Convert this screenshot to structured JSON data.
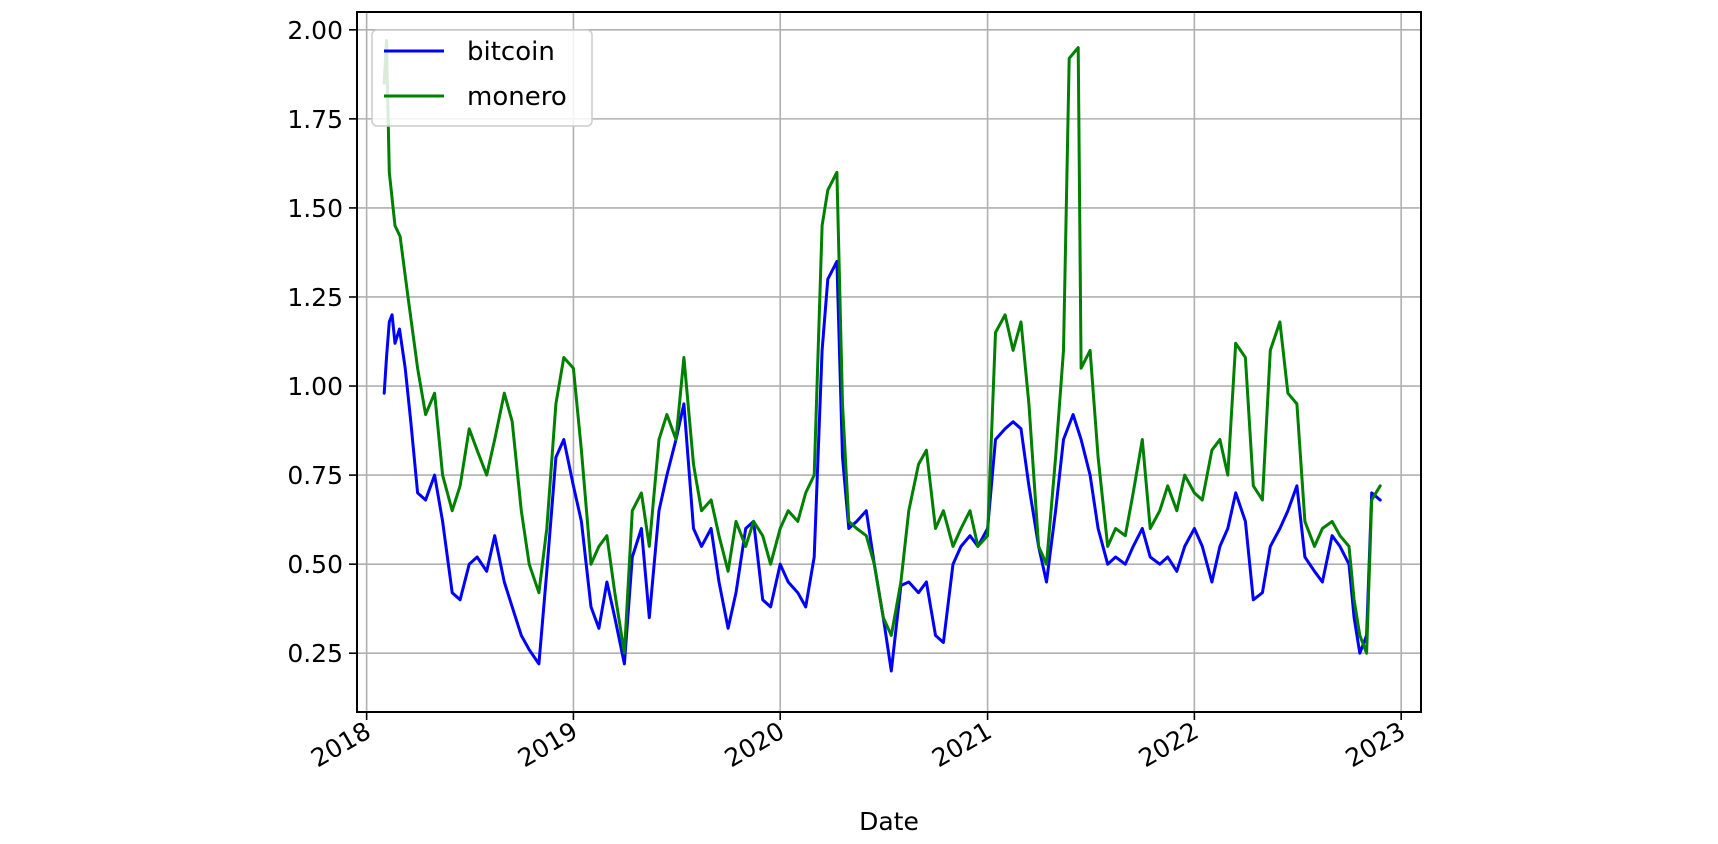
{
  "chart_data": {
    "type": "line",
    "title": "",
    "xlabel": "Date",
    "ylabel": "",
    "x_tick_labels": [
      "2018",
      "2019",
      "2020",
      "2021",
      "2022",
      "2023"
    ],
    "y_tick_labels": [
      "0.25",
      "0.50",
      "0.75",
      "1.00",
      "1.25",
      "1.50",
      "1.75",
      "2.00"
    ],
    "xlim": [
      "2017-12-15",
      "2023-02-05"
    ],
    "ylim": [
      0.085,
      2.05
    ],
    "grid": true,
    "legend_position": "upper-left",
    "series": [
      {
        "name": "bitcoin",
        "color": "#0000ff",
        "points": [
          [
            "2018-02-01",
            0.98
          ],
          [
            "2018-02-05",
            1.08
          ],
          [
            "2018-02-10",
            1.18
          ],
          [
            "2018-02-15",
            1.2
          ],
          [
            "2018-02-20",
            1.12
          ],
          [
            "2018-02-28",
            1.16
          ],
          [
            "2018-03-10",
            1.05
          ],
          [
            "2018-03-20",
            0.9
          ],
          [
            "2018-04-01",
            0.7
          ],
          [
            "2018-04-15",
            0.68
          ],
          [
            "2018-05-01",
            0.75
          ],
          [
            "2018-05-15",
            0.62
          ],
          [
            "2018-06-01",
            0.42
          ],
          [
            "2018-06-15",
            0.4
          ],
          [
            "2018-07-01",
            0.5
          ],
          [
            "2018-07-15",
            0.52
          ],
          [
            "2018-08-01",
            0.48
          ],
          [
            "2018-08-15",
            0.58
          ],
          [
            "2018-09-01",
            0.45
          ],
          [
            "2018-09-15",
            0.38
          ],
          [
            "2018-10-01",
            0.3
          ],
          [
            "2018-10-15",
            0.26
          ],
          [
            "2018-11-01",
            0.22
          ],
          [
            "2018-11-15",
            0.48
          ],
          [
            "2018-12-01",
            0.8
          ],
          [
            "2018-12-15",
            0.85
          ],
          [
            "2019-01-01",
            0.72
          ],
          [
            "2019-01-15",
            0.62
          ],
          [
            "2019-02-01",
            0.38
          ],
          [
            "2019-02-15",
            0.32
          ],
          [
            "2019-03-01",
            0.45
          ],
          [
            "2019-03-15",
            0.35
          ],
          [
            "2019-04-01",
            0.22
          ],
          [
            "2019-04-15",
            0.52
          ],
          [
            "2019-05-01",
            0.6
          ],
          [
            "2019-05-15",
            0.35
          ],
          [
            "2019-06-01",
            0.65
          ],
          [
            "2019-06-15",
            0.75
          ],
          [
            "2019-07-01",
            0.85
          ],
          [
            "2019-07-15",
            0.95
          ],
          [
            "2019-08-01",
            0.6
          ],
          [
            "2019-08-15",
            0.55
          ],
          [
            "2019-09-01",
            0.6
          ],
          [
            "2019-09-15",
            0.45
          ],
          [
            "2019-10-01",
            0.32
          ],
          [
            "2019-10-15",
            0.42
          ],
          [
            "2019-11-01",
            0.6
          ],
          [
            "2019-11-15",
            0.62
          ],
          [
            "2019-12-01",
            0.4
          ],
          [
            "2019-12-15",
            0.38
          ],
          [
            "2020-01-01",
            0.5
          ],
          [
            "2020-01-15",
            0.45
          ],
          [
            "2020-02-01",
            0.42
          ],
          [
            "2020-02-15",
            0.38
          ],
          [
            "2020-03-01",
            0.52
          ],
          [
            "2020-03-15",
            1.1
          ],
          [
            "2020-03-25",
            1.3
          ],
          [
            "2020-04-10",
            1.35
          ],
          [
            "2020-04-20",
            0.8
          ],
          [
            "2020-05-01",
            0.6
          ],
          [
            "2020-05-15",
            0.62
          ],
          [
            "2020-06-01",
            0.65
          ],
          [
            "2020-06-15",
            0.5
          ],
          [
            "2020-07-01",
            0.35
          ],
          [
            "2020-07-15",
            0.2
          ],
          [
            "2020-08-01",
            0.44
          ],
          [
            "2020-08-15",
            0.45
          ],
          [
            "2020-09-01",
            0.42
          ],
          [
            "2020-09-15",
            0.45
          ],
          [
            "2020-10-01",
            0.3
          ],
          [
            "2020-10-15",
            0.28
          ],
          [
            "2020-11-01",
            0.5
          ],
          [
            "2020-11-15",
            0.55
          ],
          [
            "2020-12-01",
            0.58
          ],
          [
            "2020-12-15",
            0.55
          ],
          [
            "2021-01-01",
            0.6
          ],
          [
            "2021-01-15",
            0.85
          ],
          [
            "2021-02-01",
            0.88
          ],
          [
            "2021-02-15",
            0.9
          ],
          [
            "2021-03-01",
            0.88
          ],
          [
            "2021-03-15",
            0.72
          ],
          [
            "2021-04-01",
            0.55
          ],
          [
            "2021-04-15",
            0.45
          ],
          [
            "2021-05-01",
            0.65
          ],
          [
            "2021-05-15",
            0.85
          ],
          [
            "2021-06-01",
            0.92
          ],
          [
            "2021-06-15",
            0.85
          ],
          [
            "2021-07-01",
            0.75
          ],
          [
            "2021-07-15",
            0.6
          ],
          [
            "2021-08-01",
            0.5
          ],
          [
            "2021-08-15",
            0.52
          ],
          [
            "2021-09-01",
            0.5
          ],
          [
            "2021-09-15",
            0.55
          ],
          [
            "2021-10-01",
            0.6
          ],
          [
            "2021-10-15",
            0.52
          ],
          [
            "2021-11-01",
            0.5
          ],
          [
            "2021-11-15",
            0.52
          ],
          [
            "2021-12-01",
            0.48
          ],
          [
            "2021-12-15",
            0.55
          ],
          [
            "2022-01-01",
            0.6
          ],
          [
            "2022-01-15",
            0.55
          ],
          [
            "2022-02-01",
            0.45
          ],
          [
            "2022-02-15",
            0.55
          ],
          [
            "2022-03-01",
            0.6
          ],
          [
            "2022-03-15",
            0.7
          ],
          [
            "2022-04-01",
            0.62
          ],
          [
            "2022-04-15",
            0.4
          ],
          [
            "2022-05-01",
            0.42
          ],
          [
            "2022-05-15",
            0.55
          ],
          [
            "2022-06-01",
            0.6
          ],
          [
            "2022-06-15",
            0.65
          ],
          [
            "2022-07-01",
            0.72
          ],
          [
            "2022-07-15",
            0.52
          ],
          [
            "2022-08-01",
            0.48
          ],
          [
            "2022-08-15",
            0.45
          ],
          [
            "2022-09-01",
            0.58
          ],
          [
            "2022-09-15",
            0.55
          ],
          [
            "2022-10-01",
            0.5
          ],
          [
            "2022-10-10",
            0.35
          ],
          [
            "2022-10-20",
            0.25
          ],
          [
            "2022-11-01",
            0.3
          ],
          [
            "2022-11-10",
            0.7
          ],
          [
            "2022-11-25",
            0.68
          ]
        ]
      },
      {
        "name": "monero",
        "color": "#008000",
        "points": [
          [
            "2018-02-01",
            1.85
          ],
          [
            "2018-02-05",
            1.97
          ],
          [
            "2018-02-10",
            1.6
          ],
          [
            "2018-02-20",
            1.45
          ],
          [
            "2018-03-01",
            1.42
          ],
          [
            "2018-03-15",
            1.25
          ],
          [
            "2018-04-01",
            1.05
          ],
          [
            "2018-04-15",
            0.92
          ],
          [
            "2018-05-01",
            0.98
          ],
          [
            "2018-05-15",
            0.75
          ],
          [
            "2018-06-01",
            0.65
          ],
          [
            "2018-06-15",
            0.72
          ],
          [
            "2018-07-01",
            0.88
          ],
          [
            "2018-07-15",
            0.82
          ],
          [
            "2018-08-01",
            0.75
          ],
          [
            "2018-08-15",
            0.85
          ],
          [
            "2018-09-01",
            0.98
          ],
          [
            "2018-09-15",
            0.9
          ],
          [
            "2018-10-01",
            0.65
          ],
          [
            "2018-10-15",
            0.5
          ],
          [
            "2018-11-01",
            0.42
          ],
          [
            "2018-11-15",
            0.6
          ],
          [
            "2018-12-01",
            0.95
          ],
          [
            "2018-12-15",
            1.08
          ],
          [
            "2019-01-01",
            1.05
          ],
          [
            "2019-01-15",
            0.82
          ],
          [
            "2019-02-01",
            0.5
          ],
          [
            "2019-02-15",
            0.55
          ],
          [
            "2019-03-01",
            0.58
          ],
          [
            "2019-03-15",
            0.42
          ],
          [
            "2019-04-01",
            0.25
          ],
          [
            "2019-04-15",
            0.65
          ],
          [
            "2019-05-01",
            0.7
          ],
          [
            "2019-05-15",
            0.55
          ],
          [
            "2019-06-01",
            0.85
          ],
          [
            "2019-06-15",
            0.92
          ],
          [
            "2019-07-01",
            0.85
          ],
          [
            "2019-07-15",
            1.08
          ],
          [
            "2019-08-01",
            0.78
          ],
          [
            "2019-08-15",
            0.65
          ],
          [
            "2019-09-01",
            0.68
          ],
          [
            "2019-09-15",
            0.58
          ],
          [
            "2019-10-01",
            0.48
          ],
          [
            "2019-10-15",
            0.62
          ],
          [
            "2019-11-01",
            0.55
          ],
          [
            "2019-11-15",
            0.62
          ],
          [
            "2019-12-01",
            0.58
          ],
          [
            "2019-12-15",
            0.5
          ],
          [
            "2020-01-01",
            0.6
          ],
          [
            "2020-01-15",
            0.65
          ],
          [
            "2020-02-01",
            0.62
          ],
          [
            "2020-02-15",
            0.7
          ],
          [
            "2020-03-01",
            0.75
          ],
          [
            "2020-03-15",
            1.45
          ],
          [
            "2020-03-25",
            1.55
          ],
          [
            "2020-04-10",
            1.6
          ],
          [
            "2020-04-20",
            0.95
          ],
          [
            "2020-05-01",
            0.62
          ],
          [
            "2020-05-15",
            0.6
          ],
          [
            "2020-06-01",
            0.58
          ],
          [
            "2020-06-15",
            0.5
          ],
          [
            "2020-07-01",
            0.35
          ],
          [
            "2020-07-15",
            0.3
          ],
          [
            "2020-08-01",
            0.45
          ],
          [
            "2020-08-15",
            0.65
          ],
          [
            "2020-09-01",
            0.78
          ],
          [
            "2020-09-15",
            0.82
          ],
          [
            "2020-10-01",
            0.6
          ],
          [
            "2020-10-15",
            0.65
          ],
          [
            "2020-11-01",
            0.55
          ],
          [
            "2020-11-15",
            0.6
          ],
          [
            "2020-12-01",
            0.65
          ],
          [
            "2020-12-15",
            0.55
          ],
          [
            "2021-01-01",
            0.58
          ],
          [
            "2021-01-15",
            1.15
          ],
          [
            "2021-02-01",
            1.2
          ],
          [
            "2021-02-15",
            1.1
          ],
          [
            "2021-03-01",
            1.18
          ],
          [
            "2021-03-15",
            0.95
          ],
          [
            "2021-04-01",
            0.55
          ],
          [
            "2021-04-15",
            0.5
          ],
          [
            "2021-05-01",
            0.8
          ],
          [
            "2021-05-15",
            1.1
          ],
          [
            "2021-05-25",
            1.92
          ],
          [
            "2021-06-10",
            1.95
          ],
          [
            "2021-06-15",
            1.05
          ],
          [
            "2021-07-01",
            1.1
          ],
          [
            "2021-07-15",
            0.8
          ],
          [
            "2021-08-01",
            0.55
          ],
          [
            "2021-08-15",
            0.6
          ],
          [
            "2021-09-01",
            0.58
          ],
          [
            "2021-09-15",
            0.7
          ],
          [
            "2021-10-01",
            0.85
          ],
          [
            "2021-10-15",
            0.6
          ],
          [
            "2021-11-01",
            0.65
          ],
          [
            "2021-11-15",
            0.72
          ],
          [
            "2021-12-01",
            0.65
          ],
          [
            "2021-12-15",
            0.75
          ],
          [
            "2022-01-01",
            0.7
          ],
          [
            "2022-01-15",
            0.68
          ],
          [
            "2022-02-01",
            0.82
          ],
          [
            "2022-02-15",
            0.85
          ],
          [
            "2022-03-01",
            0.75
          ],
          [
            "2022-03-15",
            1.12
          ],
          [
            "2022-04-01",
            1.08
          ],
          [
            "2022-04-15",
            0.72
          ],
          [
            "2022-05-01",
            0.68
          ],
          [
            "2022-05-15",
            1.1
          ],
          [
            "2022-06-01",
            1.18
          ],
          [
            "2022-06-15",
            0.98
          ],
          [
            "2022-07-01",
            0.95
          ],
          [
            "2022-07-15",
            0.62
          ],
          [
            "2022-08-01",
            0.55
          ],
          [
            "2022-08-15",
            0.6
          ],
          [
            "2022-09-01",
            0.62
          ],
          [
            "2022-09-15",
            0.58
          ],
          [
            "2022-10-01",
            0.55
          ],
          [
            "2022-10-10",
            0.4
          ],
          [
            "2022-10-20",
            0.3
          ],
          [
            "2022-11-01",
            0.25
          ],
          [
            "2022-11-10",
            0.68
          ],
          [
            "2022-11-25",
            0.72
          ]
        ]
      }
    ]
  }
}
